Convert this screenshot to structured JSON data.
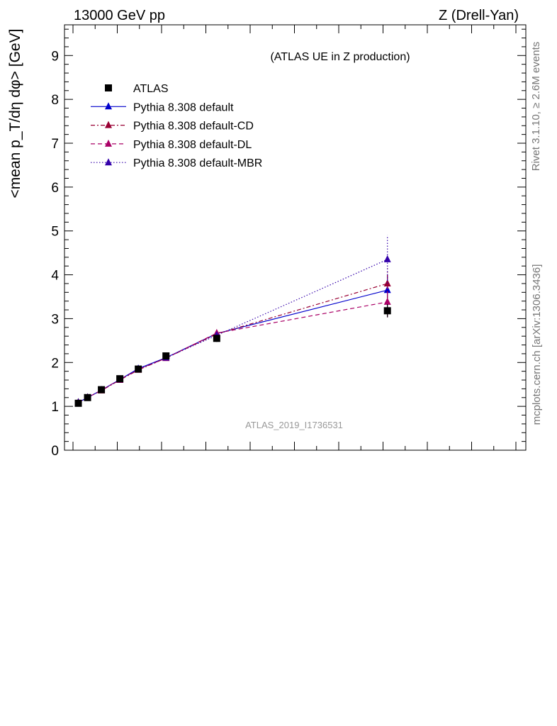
{
  "header": {
    "left": "13000 GeV pp",
    "right": "Z (Drell-Yan)"
  },
  "annotation": "(ATLAS UE in Z production)",
  "watermark": "ATLAS_2019_I1736531",
  "side_text": {
    "rivet": "Rivet 3.1.10, ≥ 2.6M events",
    "mcplots": "mcplots.cern.ch [arXiv:1306.3436]"
  },
  "colors": {
    "data": "#000000",
    "default": "#0000cc",
    "cd": "#990033",
    "dl": "#aa0066",
    "mbr": "#3300aa"
  },
  "chart_data": {
    "type": "line",
    "ylabel": "<mean p_T/dη dφ> [GeV]",
    "ylim": [
      0,
      9.7
    ],
    "xlim": [
      0,
      1
    ],
    "yticks": [
      "0",
      "1",
      "2",
      "3",
      "4",
      "5",
      "6",
      "7",
      "8",
      "9"
    ],
    "x": [
      0.03,
      0.05,
      0.08,
      0.12,
      0.16,
      0.22,
      0.33,
      0.7
    ],
    "series": [
      {
        "name": "ATLAS",
        "style": "data",
        "values": [
          1.07,
          1.2,
          1.38,
          1.63,
          1.85,
          2.15,
          2.55,
          3.18
        ],
        "errors": [
          0.03,
          0.03,
          0.04,
          0.04,
          0.05,
          0.06,
          0.08,
          0.15
        ]
      },
      {
        "name": "Pythia 8.308 default",
        "style": "default",
        "values": [
          1.09,
          1.2,
          1.37,
          1.61,
          1.86,
          2.11,
          2.66,
          3.65
        ],
        "errors": [
          0.01,
          0.01,
          0.01,
          0.02,
          0.02,
          0.03,
          0.06,
          0.35
        ]
      },
      {
        "name": "Pythia 8.308 default-CD",
        "style": "cd",
        "values": [
          1.09,
          1.2,
          1.36,
          1.6,
          1.83,
          2.1,
          2.65,
          3.8
        ],
        "errors": [
          0.01,
          0.01,
          0.01,
          0.02,
          0.02,
          0.03,
          0.07,
          0.35
        ]
      },
      {
        "name": "Pythia 8.308 default-DL",
        "style": "dl",
        "values": [
          1.09,
          1.2,
          1.37,
          1.61,
          1.84,
          2.1,
          2.67,
          3.38
        ],
        "errors": [
          0.01,
          0.01,
          0.01,
          0.02,
          0.02,
          0.03,
          0.08,
          0.35
        ]
      },
      {
        "name": "Pythia 8.308 default-MBR",
        "style": "mbr",
        "values": [
          1.09,
          1.2,
          1.37,
          1.61,
          1.85,
          2.11,
          2.62,
          4.35
        ],
        "errors": [
          0.01,
          0.01,
          0.01,
          0.02,
          0.02,
          0.03,
          0.06,
          0.55
        ]
      }
    ]
  }
}
